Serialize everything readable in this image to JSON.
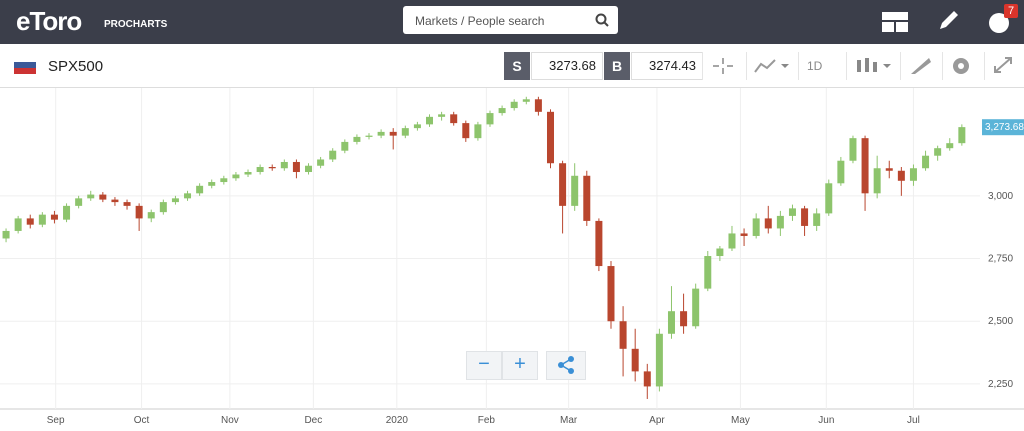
{
  "header": {
    "logo": "eToro",
    "brand": "PROCHARTS",
    "search_placeholder": "Markets / People search",
    "notifications": "7"
  },
  "toolbar": {
    "symbol": "SPX500",
    "sell_label": "S",
    "sell_price": "3273.68",
    "buy_label": "B",
    "buy_price": "3274.43",
    "interval": "1D"
  },
  "zoom": {
    "minus": "−",
    "plus": "+"
  },
  "chart_data": {
    "type": "candlestick",
    "up_color": "#8dc46c",
    "down_color": "#b9462e",
    "grid": true,
    "open": [
      2830,
      2860,
      2910,
      2885,
      2925,
      2905,
      2960,
      2990,
      3005,
      2985,
      2975,
      2960,
      2910,
      2935,
      2975,
      2990,
      3010,
      3040,
      3055,
      3070,
      3085,
      3095,
      3115,
      3110,
      3135,
      3095,
      3120,
      3145,
      3180,
      3215,
      3235,
      3240,
      3255,
      3240,
      3270,
      3285,
      3315,
      3325,
      3290,
      3230,
      3285,
      3330,
      3350,
      3375,
      3385,
      3335,
      3130,
      2960,
      3080,
      2900,
      2720,
      2500,
      2390,
      2300,
      2240,
      2450,
      2540,
      2480,
      2630,
      2760,
      2790,
      2850,
      2840,
      2910,
      2870,
      2920,
      2950,
      2880,
      2930,
      3050,
      3140,
      3230,
      3010,
      3110,
      3100,
      3060,
      3110,
      3160,
      3190,
      3210
    ],
    "high": [
      2870,
      2920,
      2925,
      2935,
      2940,
      2970,
      3000,
      3020,
      3015,
      2995,
      2985,
      2970,
      2945,
      2985,
      3000,
      3020,
      3050,
      3065,
      3080,
      3095,
      3105,
      3125,
      3125,
      3145,
      3145,
      3130,
      3155,
      3190,
      3225,
      3245,
      3250,
      3265,
      3270,
      3280,
      3295,
      3325,
      3335,
      3335,
      3300,
      3295,
      3340,
      3360,
      3385,
      3395,
      3395,
      3345,
      3140,
      3130,
      3100,
      2910,
      2740,
      2560,
      2470,
      2330,
      2470,
      2640,
      2610,
      2650,
      2780,
      2800,
      2880,
      2870,
      2930,
      2960,
      2940,
      2965,
      2960,
      2950,
      3065,
      3155,
      3240,
      3240,
      3160,
      3140,
      3115,
      3125,
      3180,
      3200,
      3230,
      3285
    ],
    "low": [
      2815,
      2850,
      2870,
      2875,
      2890,
      2895,
      2950,
      2980,
      2975,
      2960,
      2945,
      2860,
      2895,
      2925,
      2965,
      2980,
      3000,
      3030,
      3045,
      3060,
      3075,
      3085,
      3100,
      3100,
      3070,
      3085,
      3110,
      3135,
      3170,
      3205,
      3225,
      3230,
      3185,
      3230,
      3260,
      3275,
      3300,
      3280,
      3215,
      3220,
      3275,
      3320,
      3340,
      3365,
      3320,
      3110,
      2850,
      2940,
      2880,
      2700,
      2470,
      2280,
      2260,
      2190,
      2220,
      2430,
      2450,
      2470,
      2620,
      2740,
      2780,
      2800,
      2830,
      2850,
      2840,
      2900,
      2840,
      2860,
      2920,
      3040,
      3130,
      2940,
      2990,
      3070,
      3000,
      3040,
      3100,
      3140,
      3180,
      3200
    ],
    "close": [
      2860,
      2910,
      2885,
      2925,
      2905,
      2960,
      2990,
      3005,
      2985,
      2975,
      2960,
      2910,
      2935,
      2975,
      2990,
      3010,
      3040,
      3055,
      3070,
      3085,
      3095,
      3115,
      3110,
      3135,
      3095,
      3120,
      3145,
      3180,
      3215,
      3235,
      3240,
      3255,
      3240,
      3270,
      3285,
      3315,
      3325,
      3290,
      3230,
      3285,
      3330,
      3350,
      3375,
      3385,
      3335,
      3130,
      2960,
      3080,
      2900,
      2720,
      2500,
      2390,
      2300,
      2240,
      2450,
      2540,
      2480,
      2630,
      2760,
      2790,
      2850,
      2840,
      2910,
      2870,
      2920,
      2950,
      2880,
      2930,
      3050,
      3140,
      3230,
      3010,
      3110,
      3100,
      3060,
      3110,
      3160,
      3190,
      3210,
      3274
    ],
    "xlim": [
      -0.5,
      80.5
    ],
    "xticks": [
      {
        "value": 4.1,
        "label": "Sep"
      },
      {
        "value": 11.2,
        "label": "Oct"
      },
      {
        "value": 18.5,
        "label": "Nov"
      },
      {
        "value": 25.4,
        "label": "Dec"
      },
      {
        "value": 32.3,
        "label": "2020"
      },
      {
        "value": 39.7,
        "label": "Feb"
      },
      {
        "value": 46.5,
        "label": "Mar"
      },
      {
        "value": 53.8,
        "label": "Apr"
      },
      {
        "value": 60.7,
        "label": "May"
      },
      {
        "value": 67.8,
        "label": "Jun"
      },
      {
        "value": 75.0,
        "label": "Jul"
      }
    ],
    "ylim": [
      2150,
      3430
    ],
    "yticks": [
      {
        "value": 2250,
        "label": "2,250"
      },
      {
        "value": 2500,
        "label": "2,500"
      },
      {
        "value": 2750,
        "label": "2,750"
      },
      {
        "value": 3000,
        "label": "3,000"
      }
    ],
    "last_price": {
      "value": 3273.68,
      "label": "3,273.68"
    },
    "last_price_color": "#5bb4d8"
  }
}
